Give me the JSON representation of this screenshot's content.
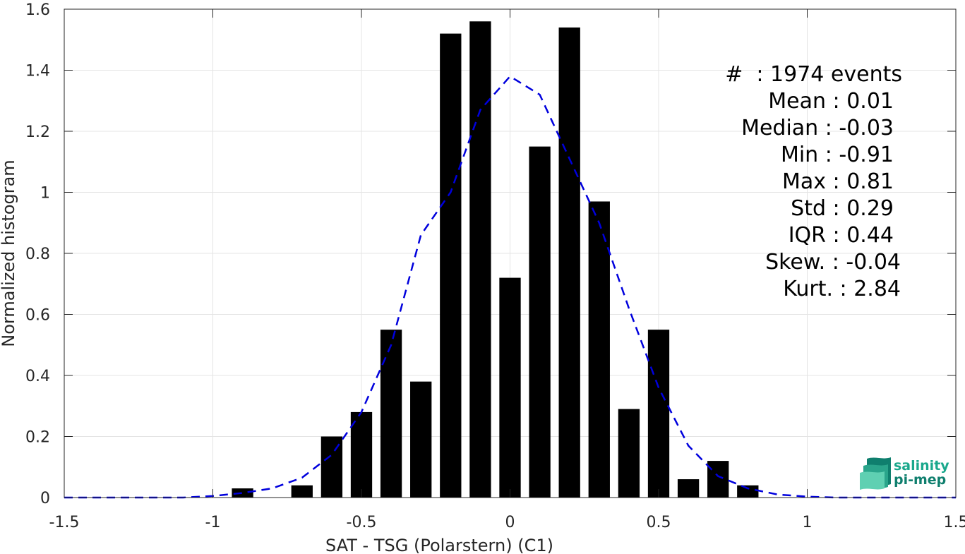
{
  "chart_data": {
    "type": "bar",
    "xlabel": "SAT - TSG (Polarstern) (C1)",
    "ylabel": "Normalized histogram",
    "xlim": [
      -1.5,
      1.5
    ],
    "ylim": [
      0,
      1.6
    ],
    "grid": true,
    "x_ticks": [
      -1.5,
      -1,
      -0.5,
      0,
      0.5,
      1,
      1.5
    ],
    "x_tick_labels": [
      "-1.5",
      "-1",
      "-0.5",
      "0",
      "0.5",
      "1",
      "1.5"
    ],
    "y_ticks": [
      0,
      0.2,
      0.4,
      0.6,
      0.8,
      1,
      1.2,
      1.4,
      1.6
    ],
    "y_tick_labels": [
      "0",
      "0.2",
      "0.4",
      "0.6",
      "0.8",
      "1",
      "1.2",
      "1.4",
      "1.6"
    ],
    "bin_width": 0.1,
    "series": [
      {
        "type": "bar",
        "color": "#000000",
        "x": [
          -0.9,
          -0.7,
          -0.6,
          -0.5,
          -0.4,
          -0.3,
          -0.2,
          -0.1,
          0.0,
          0.1,
          0.2,
          0.3,
          0.4,
          0.5,
          0.6,
          0.7,
          0.8
        ],
        "values": [
          0.03,
          0.04,
          0.2,
          0.28,
          0.55,
          0.38,
          1.52,
          1.56,
          0.72,
          1.15,
          1.54,
          0.97,
          0.29,
          0.55,
          0.06,
          0.12,
          0.04
        ]
      },
      {
        "type": "line",
        "style": "dashed",
        "color": "#0000dd",
        "x": [
          -1.5,
          -1.3,
          -1.1,
          -1.0,
          -0.9,
          -0.8,
          -0.7,
          -0.6,
          -0.5,
          -0.4,
          -0.3,
          -0.2,
          -0.1,
          0.0,
          0.1,
          0.2,
          0.3,
          0.4,
          0.5,
          0.6,
          0.7,
          0.8,
          0.9,
          1.0,
          1.1,
          1.3,
          1.5
        ],
        "values": [
          0.0,
          0.0,
          0.0,
          0.005,
          0.015,
          0.03,
          0.065,
          0.14,
          0.28,
          0.5,
          0.86,
          1.0,
          1.27,
          1.38,
          1.32,
          1.11,
          0.9,
          0.62,
          0.36,
          0.17,
          0.07,
          0.03,
          0.01,
          0.003,
          0.0,
          0.0,
          0.0
        ]
      }
    ],
    "annotation_lines": [
      "#  : 1974 events",
      "Mean : 0.01",
      "Median : -0.03",
      "Min : -0.91",
      "Max : 0.81",
      "Std : 0.29",
      "IQR : 0.44",
      "Skew. : -0.04",
      "Kurt. : 2.84"
    ]
  },
  "logo": {
    "line1": "salinity",
    "line2": "pi-mep",
    "color_dark": "#0f7f6e",
    "color_light": "#5fd0b2"
  }
}
